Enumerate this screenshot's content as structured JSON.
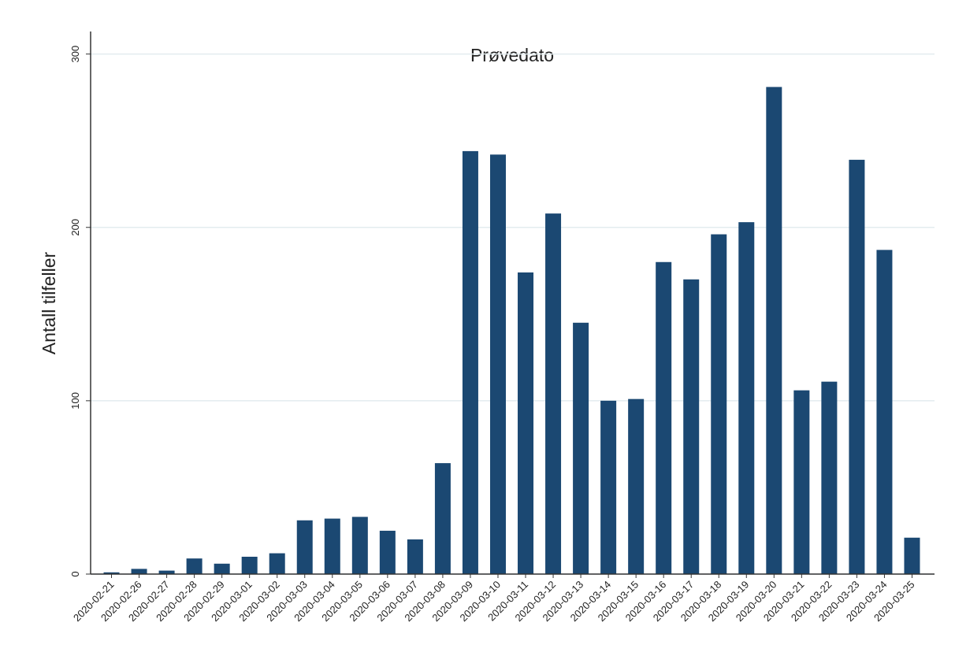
{
  "chart_data": {
    "type": "bar",
    "title": "Prøvedato",
    "y_label": "Antall tilfeller",
    "categories": [
      "2020-02-21",
      "2020-02-26",
      "2020-02-27",
      "2020-02-28",
      "2020-02-29",
      "2020-03-01",
      "2020-03-02",
      "2020-03-03",
      "2020-03-04",
      "2020-03-05",
      "2020-03-06",
      "2020-03-07",
      "2020-03-08",
      "2020-03-09",
      "2020-03-10",
      "2020-03-11",
      "2020-03-12",
      "2020-03-13",
      "2020-03-14",
      "2020-03-15",
      "2020-03-16",
      "2020-03-17",
      "2020-03-18",
      "2020-03-19",
      "2020-03-20",
      "2020-03-21",
      "2020-03-22",
      "2020-03-23",
      "2020-03-24",
      "2020-03-25"
    ],
    "values": [
      1,
      3,
      2,
      9,
      6,
      10,
      12,
      31,
      32,
      33,
      25,
      20,
      64,
      244,
      242,
      174,
      208,
      145,
      100,
      101,
      180,
      170,
      196,
      203,
      281,
      106,
      111,
      239,
      187,
      21
    ],
    "color": "#1b4872",
    "ylim": [
      0,
      313
    ],
    "yticks": [
      0,
      100,
      200,
      300
    ],
    "grid": true
  }
}
